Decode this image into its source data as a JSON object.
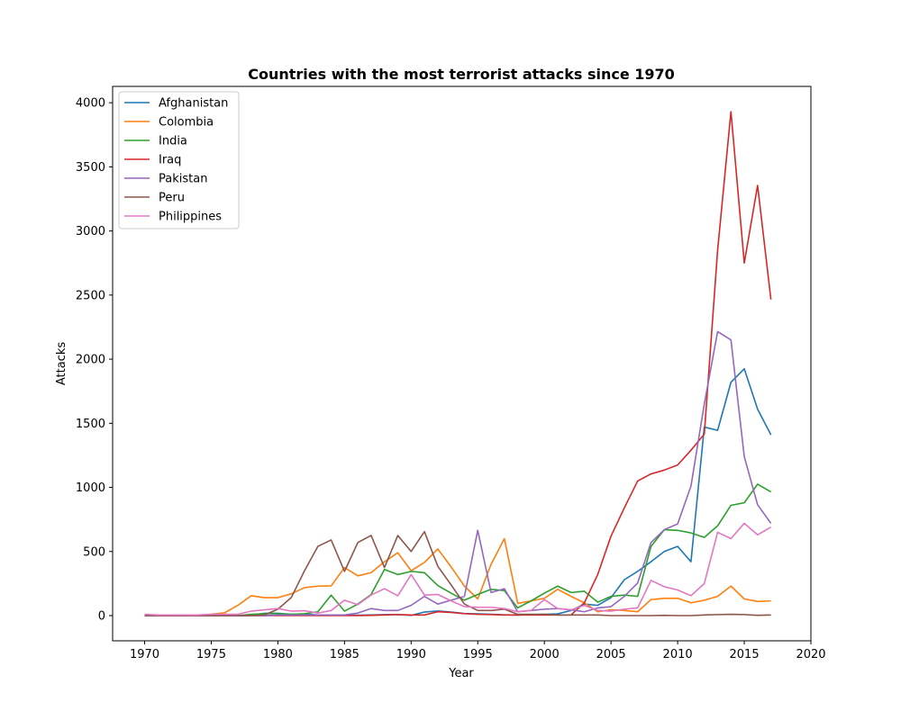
{
  "chart_data": {
    "type": "line",
    "title": "Countries with the most terrorist attacks since 1970",
    "xlabel": "Year",
    "ylabel": "Attacks",
    "xlim": [
      1967.6,
      2020
    ],
    "ylim": [
      -196.5,
      4127.5
    ],
    "xticks": [
      1970,
      1975,
      1980,
      1985,
      1990,
      1995,
      2000,
      2005,
      2010,
      2015,
      2020
    ],
    "yticks": [
      0,
      500,
      1000,
      1500,
      2000,
      2500,
      3000,
      3500,
      4000
    ],
    "grid": false,
    "legend_position": "top-left",
    "x": [
      1970,
      1971,
      1972,
      1973,
      1974,
      1975,
      1976,
      1977,
      1978,
      1979,
      1980,
      1981,
      1982,
      1983,
      1984,
      1985,
      1986,
      1987,
      1988,
      1989,
      1990,
      1991,
      1992,
      1993,
      1994,
      1995,
      1996,
      1997,
      1998,
      1999,
      2000,
      2001,
      2002,
      2003,
      2004,
      2005,
      2006,
      2007,
      2008,
      2009,
      2010,
      2011,
      2012,
      2013,
      2014,
      2015,
      2016,
      2017
    ],
    "series": [
      {
        "name": "Afghanistan",
        "color": "#1f77b4",
        "values": [
          0,
          0,
          0,
          0,
          2,
          0,
          0,
          0,
          3,
          18,
          18,
          10,
          12,
          5,
          4,
          3,
          3,
          5,
          8,
          8,
          2,
          28,
          36,
          28,
          16,
          14,
          10,
          6,
          4,
          8,
          10,
          14,
          40,
          90,
          80,
          140,
          280,
          345,
          420,
          500,
          540,
          420,
          1470,
          1445,
          1820,
          1925,
          1610,
          1410
        ]
      },
      {
        "name": "Colombia",
        "color": "#ff7f0e",
        "values": [
          5,
          0,
          2,
          5,
          5,
          10,
          22,
          80,
          155,
          140,
          140,
          170,
          218,
          230,
          232,
          375,
          310,
          335,
          420,
          490,
          350,
          415,
          520,
          380,
          230,
          130,
          400,
          600,
          95,
          115,
          135,
          205,
          150,
          100,
          30,
          45,
          40,
          30,
          125,
          135,
          135,
          100,
          120,
          150,
          230,
          130,
          110,
          115
        ]
      },
      {
        "name": "India",
        "color": "#2ca02c",
        "values": [
          0,
          0,
          0,
          0,
          0,
          0,
          0,
          0,
          10,
          15,
          15,
          10,
          15,
          30,
          160,
          35,
          90,
          165,
          360,
          320,
          345,
          335,
          235,
          175,
          120,
          165,
          205,
          195,
          60,
          115,
          175,
          230,
          180,
          190,
          105,
          150,
          160,
          150,
          540,
          670,
          665,
          645,
          610,
          700,
          860,
          880,
          1025,
          965
        ]
      },
      {
        "name": "Iraq",
        "color": "#d62728",
        "values": [
          0,
          0,
          0,
          0,
          0,
          0,
          0,
          0,
          0,
          0,
          0,
          0,
          0,
          0,
          0,
          0,
          0,
          2,
          5,
          8,
          5,
          5,
          30,
          25,
          15,
          10,
          8,
          5,
          5,
          5,
          5,
          5,
          5,
          100,
          320,
          620,
          840,
          1050,
          1105,
          1135,
          1175,
          1290,
          1415,
          2850,
          3930,
          2750,
          3355,
          2465
        ]
      },
      {
        "name": "Pakistan",
        "color": "#9467bd",
        "values": [
          0,
          0,
          0,
          0,
          0,
          0,
          0,
          0,
          0,
          0,
          5,
          5,
          5,
          5,
          5,
          5,
          20,
          55,
          40,
          40,
          80,
          150,
          90,
          120,
          150,
          665,
          180,
          210,
          30,
          40,
          50,
          55,
          45,
          30,
          60,
          70,
          150,
          255,
          570,
          670,
          715,
          1010,
          1650,
          2215,
          2150,
          1240,
          865,
          720
        ]
      },
      {
        "name": "Peru",
        "color": "#8c564b",
        "values": [
          0,
          0,
          0,
          0,
          0,
          0,
          0,
          0,
          0,
          5,
          50,
          140,
          350,
          540,
          590,
          345,
          570,
          625,
          375,
          625,
          500,
          655,
          385,
          240,
          90,
          40,
          40,
          50,
          10,
          10,
          10,
          5,
          5,
          5,
          5,
          0,
          0,
          0,
          0,
          2,
          0,
          0,
          5,
          8,
          10,
          8,
          2,
          5
        ]
      },
      {
        "name": "Philippines",
        "color": "#e377c2",
        "values": [
          10,
          5,
          5,
          5,
          5,
          10,
          10,
          10,
          35,
          45,
          55,
          35,
          38,
          20,
          40,
          120,
          85,
          160,
          210,
          155,
          320,
          160,
          165,
          115,
          70,
          65,
          65,
          55,
          30,
          40,
          125,
          55,
          45,
          80,
          40,
          35,
          50,
          60,
          275,
          225,
          200,
          155,
          250,
          650,
          600,
          720,
          630,
          690
        ]
      }
    ]
  }
}
